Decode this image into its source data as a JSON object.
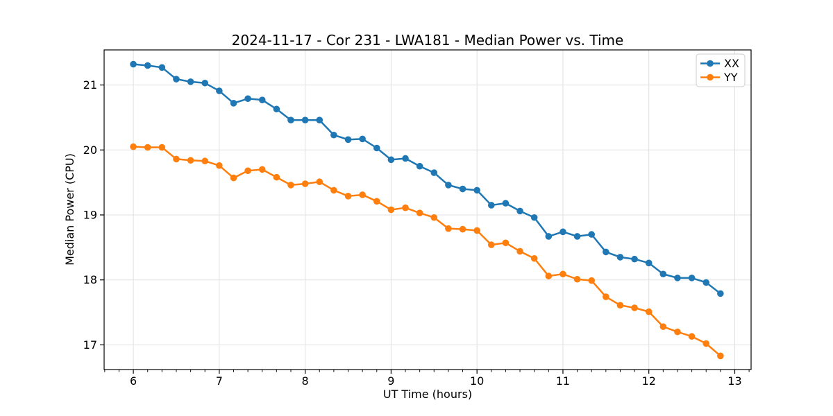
{
  "chart_data": {
    "type": "line",
    "title": "2024-11-17 - Cor 231 - LWA181 - Median Power vs. Time",
    "xlabel": "UT Time (hours)",
    "ylabel": "Median Power (CPU)",
    "xlim": [
      5.66,
      13.19
    ],
    "ylim": [
      16.62,
      21.54
    ],
    "x_ticks": [
      6,
      7,
      8,
      9,
      10,
      11,
      12,
      13
    ],
    "y_ticks": [
      17,
      18,
      19,
      20,
      21
    ],
    "x_minor_tick_interval_hours": 0.16667,
    "grid": true,
    "legend_position": "upper right",
    "background_color": "#ffffff",
    "grid_color": "#e0e0e0",
    "spine_color": "#000000",
    "x": [
      6.0,
      6.1667,
      6.3333,
      6.5,
      6.6667,
      6.8333,
      7.0,
      7.1667,
      7.3333,
      7.5,
      7.6667,
      7.8333,
      8.0,
      8.1667,
      8.3333,
      8.5,
      8.6667,
      8.8333,
      9.0,
      9.1667,
      9.3333,
      9.5,
      9.6667,
      9.8333,
      10.0,
      10.1667,
      10.3333,
      10.5,
      10.6667,
      10.8333,
      11.0,
      11.1667,
      11.3333,
      11.5,
      11.6667,
      11.8333,
      12.0,
      12.1667,
      12.3333,
      12.5,
      12.6667,
      12.8333
    ],
    "series": [
      {
        "name": "XX",
        "color": "#1f77b4",
        "marker": "circle",
        "values": [
          21.32,
          21.3,
          21.27,
          21.09,
          21.05,
          21.03,
          20.91,
          20.72,
          20.79,
          20.77,
          20.63,
          20.46,
          20.46,
          20.46,
          20.23,
          20.16,
          20.17,
          20.03,
          19.85,
          19.87,
          19.75,
          19.65,
          19.46,
          19.4,
          19.38,
          19.15,
          19.18,
          19.06,
          18.96,
          18.67,
          18.74,
          18.67,
          18.7,
          18.43,
          18.35,
          18.32,
          18.26,
          18.09,
          18.03,
          18.03,
          17.96,
          17.79
        ]
      },
      {
        "name": "YY",
        "color": "#ff7f0e",
        "marker": "circle",
        "values": [
          20.05,
          20.04,
          20.04,
          19.86,
          19.84,
          19.83,
          19.76,
          19.57,
          19.68,
          19.7,
          19.58,
          19.46,
          19.48,
          19.51,
          19.38,
          19.29,
          19.31,
          19.21,
          19.08,
          19.11,
          19.03,
          18.96,
          18.79,
          18.78,
          18.76,
          18.54,
          18.57,
          18.44,
          18.33,
          18.06,
          18.09,
          18.01,
          17.99,
          17.74,
          17.61,
          17.57,
          17.51,
          17.28,
          17.2,
          17.13,
          17.02,
          16.83
        ]
      }
    ]
  }
}
